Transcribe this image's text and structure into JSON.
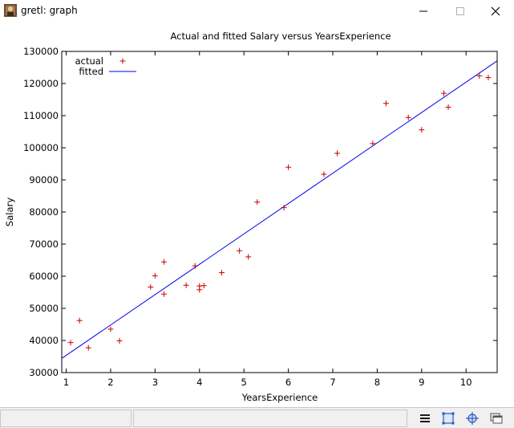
{
  "window": {
    "title": "gretl: graph",
    "icons": {
      "app": "gretl-app-icon",
      "minimize": "minimize-icon",
      "maximize": "maximize-icon",
      "close": "close-icon"
    }
  },
  "toolbar": {
    "icons": [
      "menu-icon",
      "zoom-icon",
      "target-icon",
      "window-icon"
    ]
  },
  "colors": {
    "actual": "#cc0000",
    "fitted": "#0000ee",
    "axis": "#000000"
  },
  "chart_data": {
    "type": "scatter",
    "title": "Actual and fitted Salary versus YearsExperience",
    "xlabel": "YearsExperience",
    "ylabel": "Salary",
    "xlim": [
      0.9,
      10.7
    ],
    "ylim": [
      30000,
      130000
    ],
    "xticks": [
      1,
      2,
      3,
      4,
      5,
      6,
      7,
      8,
      9,
      10
    ],
    "yticks": [
      30000,
      40000,
      50000,
      60000,
      70000,
      80000,
      90000,
      100000,
      110000,
      120000,
      130000
    ],
    "legend_position": "top-left",
    "grid": false,
    "series": [
      {
        "name": "actual",
        "marker": "+",
        "points": [
          [
            1.1,
            39343
          ],
          [
            1.3,
            46205
          ],
          [
            1.5,
            37731
          ],
          [
            2.0,
            43525
          ],
          [
            2.2,
            39891
          ],
          [
            2.9,
            56642
          ],
          [
            3.0,
            60150
          ],
          [
            3.2,
            54445
          ],
          [
            3.2,
            64445
          ],
          [
            3.7,
            57189
          ],
          [
            3.9,
            63218
          ],
          [
            4.0,
            55794
          ],
          [
            4.0,
            56957
          ],
          [
            4.1,
            57081
          ],
          [
            4.5,
            61111
          ],
          [
            4.9,
            67938
          ],
          [
            5.1,
            66029
          ],
          [
            5.3,
            83088
          ],
          [
            5.9,
            81363
          ],
          [
            6.0,
            93940
          ],
          [
            6.8,
            91738
          ],
          [
            7.1,
            98273
          ],
          [
            7.9,
            101302
          ],
          [
            8.2,
            113812
          ],
          [
            8.7,
            109431
          ],
          [
            9.0,
            105582
          ],
          [
            9.5,
            116969
          ],
          [
            9.6,
            112635
          ],
          [
            10.3,
            122391
          ],
          [
            10.5,
            121872
          ]
        ]
      },
      {
        "name": "fitted",
        "line": true,
        "points": [
          [
            0.9,
            34422
          ],
          [
            10.7,
            127040
          ]
        ]
      }
    ]
  }
}
